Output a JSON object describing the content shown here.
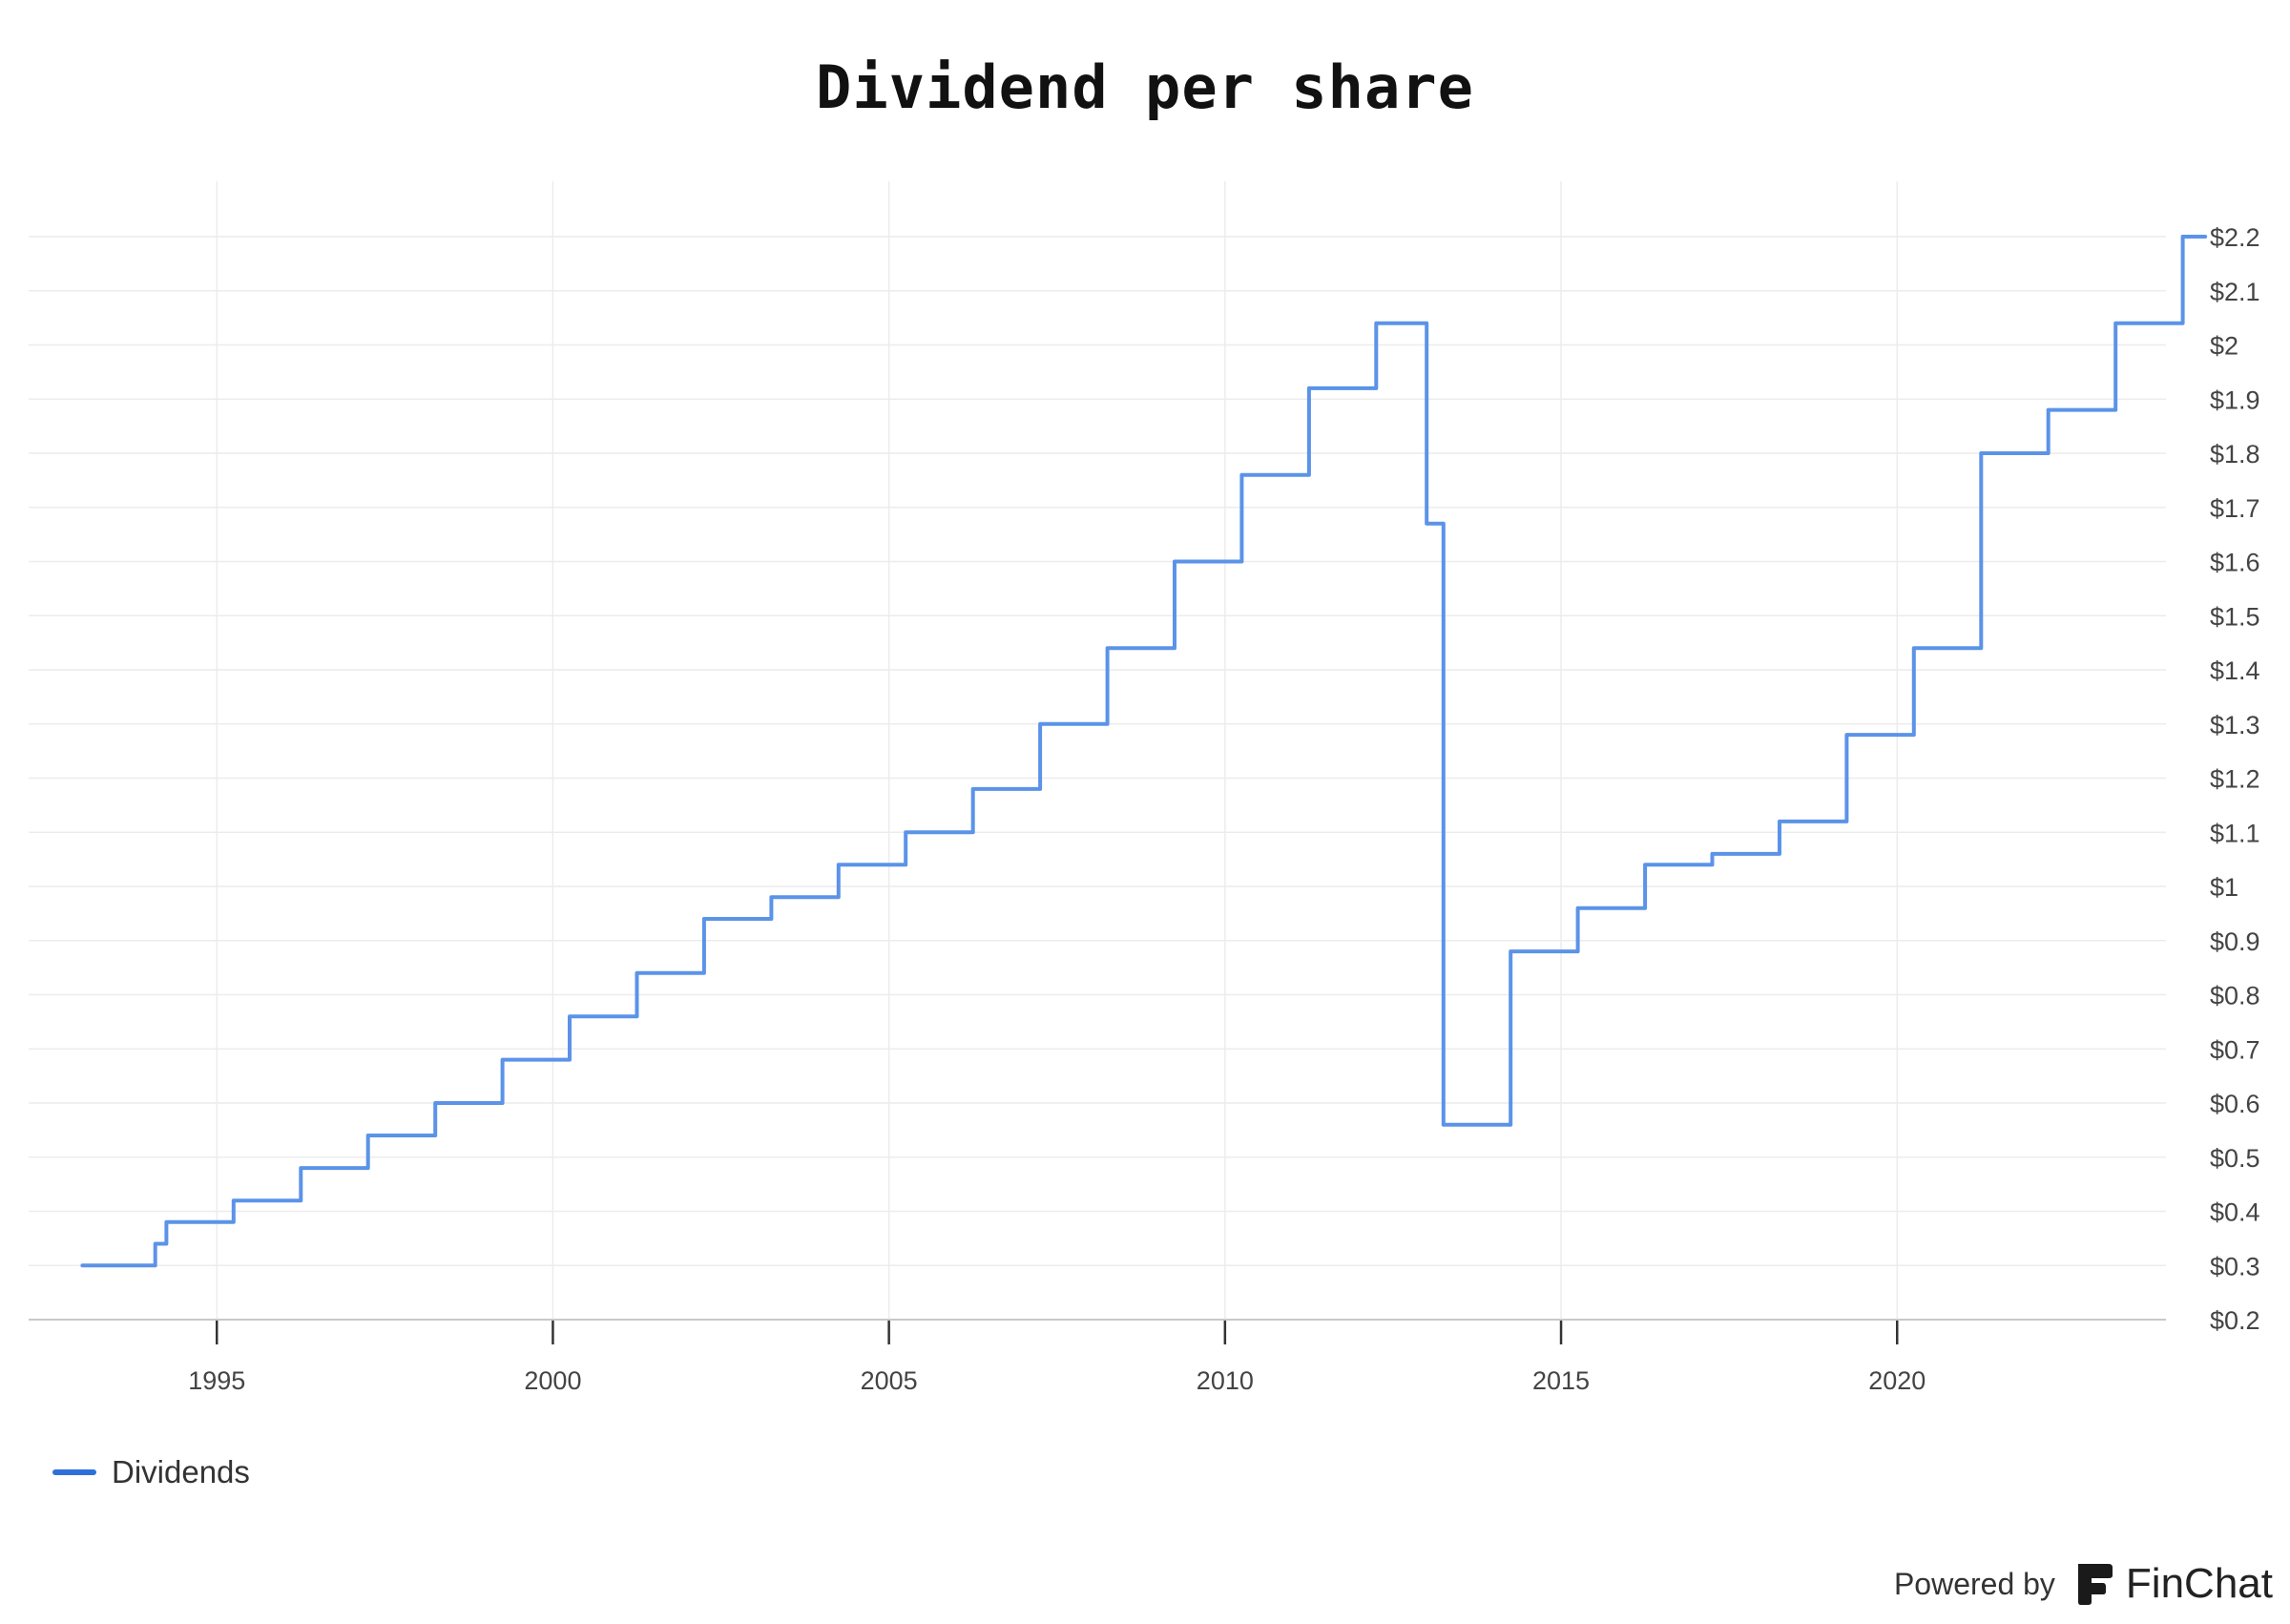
{
  "chart_data": {
    "type": "line",
    "title": "Dividend per share",
    "xlabel": "",
    "ylabel": "",
    "step": true,
    "grid": true,
    "legend_position": "bottom-left",
    "y_axis_side": "right",
    "xlim": [
      1992.2,
      2024.0
    ],
    "ylim": [
      0.2,
      2.2
    ],
    "x_ticks": [
      1995,
      2000,
      2005,
      2010,
      2015,
      2020
    ],
    "x_tick_labels": [
      "1995",
      "2000",
      "2005",
      "2010",
      "2015",
      "2020"
    ],
    "y_ticks": [
      0.2,
      0.3,
      0.4,
      0.5,
      0.6,
      0.7,
      0.8,
      0.9,
      1.0,
      1.1,
      1.2,
      1.3,
      1.4,
      1.5,
      1.6,
      1.7,
      1.8,
      1.9,
      2.0,
      2.1,
      2.2
    ],
    "y_tick_labels": [
      "$0.2",
      "$0.3",
      "$0.4",
      "$0.5",
      "$0.6",
      "$0.7",
      "$0.8",
      "$0.9",
      "$1",
      "$1.1",
      "$1.2",
      "$1.3",
      "$1.4",
      "$1.5",
      "$1.6",
      "$1.7",
      "$1.8",
      "$1.9",
      "$2",
      "$2.1",
      "$2.2"
    ],
    "series": [
      {
        "name": "Dividends",
        "color": "#5b93e8",
        "points": [
          {
            "date": "1993-01",
            "value": 0.3
          },
          {
            "date": "1994-02",
            "value": 0.34
          },
          {
            "date": "1994-04",
            "value": 0.38
          },
          {
            "date": "1995-04",
            "value": 0.42
          },
          {
            "date": "1996-04",
            "value": 0.48
          },
          {
            "date": "1997-04",
            "value": 0.54
          },
          {
            "date": "1998-04",
            "value": 0.6
          },
          {
            "date": "1999-04",
            "value": 0.68
          },
          {
            "date": "2000-04",
            "value": 0.76
          },
          {
            "date": "2001-04",
            "value": 0.84
          },
          {
            "date": "2002-04",
            "value": 0.94
          },
          {
            "date": "2003-04",
            "value": 0.98
          },
          {
            "date": "2004-04",
            "value": 1.04
          },
          {
            "date": "2005-04",
            "value": 1.1
          },
          {
            "date": "2006-04",
            "value": 1.18
          },
          {
            "date": "2007-04",
            "value": 1.3
          },
          {
            "date": "2008-04",
            "value": 1.44
          },
          {
            "date": "2009-04",
            "value": 1.6
          },
          {
            "date": "2010-04",
            "value": 1.76
          },
          {
            "date": "2011-04",
            "value": 1.92
          },
          {
            "date": "2012-04",
            "value": 2.04
          },
          {
            "date": "2013-01",
            "value": 1.67
          },
          {
            "date": "2013-04",
            "value": 0.56
          },
          {
            "date": "2014-04",
            "value": 0.88
          },
          {
            "date": "2015-04",
            "value": 0.96
          },
          {
            "date": "2016-04",
            "value": 1.04
          },
          {
            "date": "2017-04",
            "value": 1.06
          },
          {
            "date": "2018-04",
            "value": 1.12
          },
          {
            "date": "2019-04",
            "value": 1.28
          },
          {
            "date": "2020-04",
            "value": 1.44
          },
          {
            "date": "2021-04",
            "value": 1.8
          },
          {
            "date": "2022-04",
            "value": 1.88
          },
          {
            "date": "2023-04",
            "value": 2.04
          },
          {
            "date": "2024-04",
            "value": 2.2
          },
          {
            "date": "2024-08",
            "value": 2.2
          }
        ]
      }
    ]
  },
  "legend": {
    "label": "Dividends",
    "color": "#2f6fdb"
  },
  "footer": {
    "powered_by": "Powered by",
    "brand": "FinChat"
  }
}
